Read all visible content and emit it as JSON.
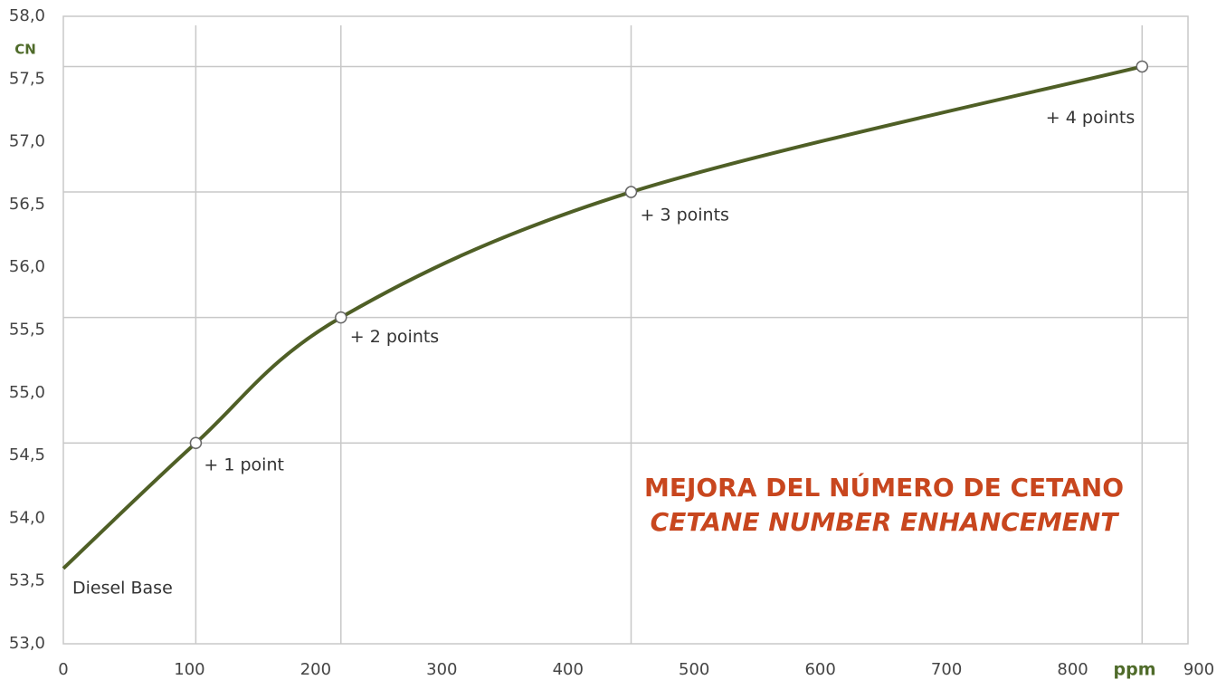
{
  "chart_data": {
    "type": "line",
    "title": "MEJORA DEL NÚMERO DE CETANO",
    "subtitle": "CETANE NUMBER ENHANCEMENT",
    "x_label": "ppm",
    "y_label": "CN",
    "x": [
      0,
      105,
      220,
      450,
      855
    ],
    "series": [
      {
        "name": "CN",
        "color": "#4f5f26",
        "values": [
          53.6,
          54.6,
          55.6,
          56.6,
          57.6
        ]
      }
    ],
    "annotations": [
      "Diesel Base",
      "+ 1 point",
      "+ 2 points",
      "+ 3 points",
      "+ 4 points"
    ],
    "xlim": [
      0,
      900
    ],
    "xticks": [
      0,
      100,
      200,
      300,
      400,
      500,
      600,
      700,
      800,
      900
    ],
    "ylim": [
      53,
      58
    ],
    "yticks": [
      {
        "value": 53,
        "label": "53,0"
      },
      {
        "value": 53.5,
        "label": "53,5"
      },
      {
        "value": 54,
        "label": "54,0"
      },
      {
        "value": 54.5,
        "label": "54,5"
      },
      {
        "value": 55,
        "label": "55,0"
      },
      {
        "value": 55.5,
        "label": "55,5"
      },
      {
        "value": 56,
        "label": "56,0"
      },
      {
        "value": 56.5,
        "label": "56,5"
      },
      {
        "value": 57,
        "label": "57,0"
      },
      {
        "value": 57.5,
        "label": "57,5"
      },
      {
        "value": 58,
        "label": "58,0"
      }
    ]
  }
}
